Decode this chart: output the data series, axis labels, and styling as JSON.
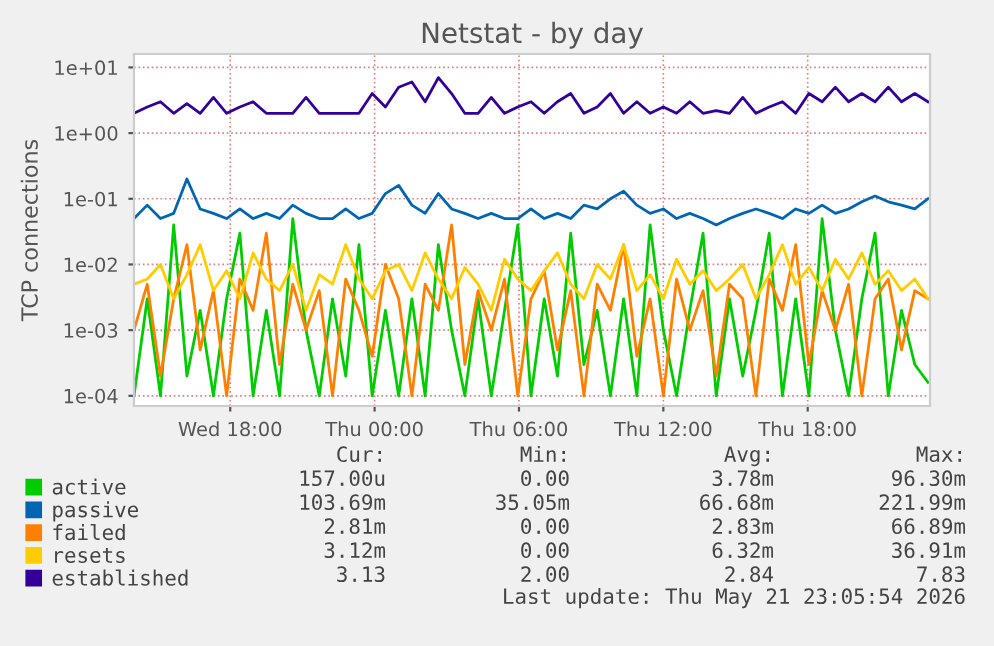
{
  "chart_data": {
    "type": "line",
    "title": "Netstat - by day",
    "ylabel": "TCP connections",
    "log": "y",
    "grid": true,
    "legend": "bottom",
    "marker": "none",
    "line_style": "solid",
    "x": [
      "2026-05-20T14:00",
      "2026-05-20T14:33",
      "2026-05-20T15:06",
      "2026-05-20T15:39",
      "2026-05-20T16:12",
      "2026-05-20T16:45",
      "2026-05-20T17:18",
      "2026-05-20T17:51",
      "2026-05-20T18:24",
      "2026-05-20T18:57",
      "2026-05-20T19:30",
      "2026-05-20T20:03",
      "2026-05-20T20:36",
      "2026-05-20T21:09",
      "2026-05-20T21:42",
      "2026-05-20T22:15",
      "2026-05-20T22:48",
      "2026-05-20T23:21",
      "2026-05-20T23:54",
      "2026-05-21T00:27",
      "2026-05-21T01:00",
      "2026-05-21T01:33",
      "2026-05-21T02:06",
      "2026-05-21T02:39",
      "2026-05-21T03:12",
      "2026-05-21T03:45",
      "2026-05-21T04:18",
      "2026-05-21T04:51",
      "2026-05-21T05:24",
      "2026-05-21T05:57",
      "2026-05-21T06:30",
      "2026-05-21T07:03",
      "2026-05-21T07:36",
      "2026-05-21T08:09",
      "2026-05-21T08:42",
      "2026-05-21T09:15",
      "2026-05-21T09:48",
      "2026-05-21T10:21",
      "2026-05-21T10:54",
      "2026-05-21T11:27",
      "2026-05-21T12:00",
      "2026-05-21T12:33",
      "2026-05-21T13:06",
      "2026-05-21T13:39",
      "2026-05-21T14:12",
      "2026-05-21T14:45",
      "2026-05-21T15:18",
      "2026-05-21T15:51",
      "2026-05-21T16:24",
      "2026-05-21T16:57",
      "2026-05-21T17:30",
      "2026-05-21T18:03",
      "2026-05-21T18:36",
      "2026-05-21T19:09",
      "2026-05-21T19:42",
      "2026-05-21T20:15",
      "2026-05-21T20:48",
      "2026-05-21T21:21",
      "2026-05-21T21:54",
      "2026-05-21T22:27",
      "2026-05-21T23:00"
    ],
    "xlim": [
      "2026-05-20T14:00",
      "2026-05-21T23:05"
    ],
    "xticks": [
      {
        "value": "2026-05-20T18:00",
        "label": "Wed 18:00"
      },
      {
        "value": "2026-05-21T00:00",
        "label": "Thu 00:00"
      },
      {
        "value": "2026-05-21T06:00",
        "label": "Thu 06:00"
      },
      {
        "value": "2026-05-21T12:00",
        "label": "Thu 12:00"
      },
      {
        "value": "2026-05-21T18:00",
        "label": "Thu 18:00"
      }
    ],
    "ylim": [
      7e-05,
      16
    ],
    "yticks": [
      {
        "value": 0.0001,
        "label": "1e-04"
      },
      {
        "value": 0.001,
        "label": "1e-03"
      },
      {
        "value": 0.01,
        "label": "1e-02"
      },
      {
        "value": 0.1,
        "label": "1e-01"
      },
      {
        "value": 1,
        "label": "1e+00"
      },
      {
        "value": 10,
        "label": "1e+01"
      }
    ],
    "series": [
      {
        "name": "active",
        "color": "#00cc00",
        "values": [
          0.0001,
          0.003,
          0.0001,
          0.04,
          0.0002,
          0.002,
          0.0001,
          0.003,
          0.03,
          0.0001,
          0.002,
          0.0001,
          0.05,
          0.001,
          0.0001,
          0.003,
          0.0002,
          0.02,
          0.0001,
          0.002,
          0.0001,
          0.003,
          0.0001,
          0.02,
          0.001,
          0.0001,
          0.003,
          0.0001,
          0.002,
          0.04,
          0.0001,
          0.003,
          0.0002,
          0.03,
          0.0003,
          0.002,
          0.0001,
          0.003,
          0.0001,
          0.04,
          0.001,
          0.0001,
          0.002,
          0.03,
          0.0001,
          0.003,
          0.0002,
          0.002,
          0.03,
          0.0001,
          0.003,
          0.0001,
          0.05,
          0.001,
          0.0001,
          0.003,
          0.03,
          0.0001,
          0.002,
          0.0003,
          0.00016
        ]
      },
      {
        "name": "passive",
        "color": "#0066b3",
        "values": [
          0.05,
          0.08,
          0.05,
          0.06,
          0.2,
          0.07,
          0.06,
          0.05,
          0.07,
          0.05,
          0.06,
          0.05,
          0.08,
          0.06,
          0.05,
          0.05,
          0.07,
          0.05,
          0.06,
          0.12,
          0.16,
          0.08,
          0.06,
          0.12,
          0.07,
          0.06,
          0.05,
          0.06,
          0.05,
          0.05,
          0.07,
          0.05,
          0.06,
          0.05,
          0.08,
          0.07,
          0.1,
          0.13,
          0.08,
          0.06,
          0.07,
          0.05,
          0.06,
          0.05,
          0.04,
          0.05,
          0.06,
          0.07,
          0.06,
          0.05,
          0.07,
          0.06,
          0.08,
          0.06,
          0.07,
          0.09,
          0.11,
          0.09,
          0.08,
          0.07,
          0.1
        ]
      },
      {
        "name": "failed",
        "color": "#ff8000",
        "values": [
          0.001,
          0.005,
          0.0002,
          0.003,
          0.02,
          0.0005,
          0.004,
          0.0001,
          0.006,
          0.002,
          0.03,
          0.0003,
          0.005,
          0.001,
          0.004,
          0.0001,
          0.006,
          0.002,
          0.0004,
          0.01,
          0.003,
          0.0001,
          0.005,
          0.002,
          0.04,
          0.0003,
          0.004,
          0.001,
          0.006,
          0.0001,
          0.003,
          0.008,
          0.0005,
          0.004,
          0.0001,
          0.005,
          0.002,
          0.02,
          0.0004,
          0.003,
          0.0001,
          0.006,
          0.001,
          0.004,
          0.0002,
          0.005,
          0.003,
          0.0001,
          0.006,
          0.002,
          0.02,
          0.0003,
          0.004,
          0.001,
          0.005,
          0.0001,
          0.003,
          0.006,
          0.0005,
          0.004,
          0.003
        ]
      },
      {
        "name": "resets",
        "color": "#ffcc00",
        "values": [
          0.005,
          0.006,
          0.01,
          0.003,
          0.007,
          0.02,
          0.004,
          0.008,
          0.003,
          0.015,
          0.006,
          0.004,
          0.01,
          0.002,
          0.007,
          0.005,
          0.02,
          0.006,
          0.003,
          0.008,
          0.01,
          0.004,
          0.015,
          0.006,
          0.003,
          0.009,
          0.005,
          0.002,
          0.012,
          0.006,
          0.004,
          0.008,
          0.015,
          0.005,
          0.003,
          0.01,
          0.006,
          0.02,
          0.004,
          0.007,
          0.003,
          0.012,
          0.005,
          0.008,
          0.004,
          0.006,
          0.01,
          0.003,
          0.007,
          0.02,
          0.005,
          0.009,
          0.004,
          0.012,
          0.006,
          0.015,
          0.005,
          0.008,
          0.004,
          0.006,
          0.003
        ]
      },
      {
        "name": "established",
        "color": "#330099",
        "values": [
          2,
          2.5,
          3,
          2,
          2.8,
          2,
          3.5,
          2,
          2.5,
          3,
          2,
          2,
          2,
          3.5,
          2,
          2,
          2,
          2,
          4,
          2.5,
          5,
          6,
          3,
          7,
          4,
          2,
          2,
          3.5,
          2,
          2.5,
          3,
          2,
          3,
          4,
          2,
          2.5,
          4,
          2,
          3,
          2,
          2.5,
          2,
          3,
          2,
          2.2,
          2,
          3.5,
          2,
          2.5,
          3,
          2,
          4,
          3,
          5,
          3,
          4,
          3,
          5,
          3,
          4,
          3
        ]
      }
    ],
    "annotations": [
      "Cur:",
      "Min:",
      "Avg:",
      "Max:",
      "157.00u",
      "0.00",
      "3.78m",
      "96.30m",
      "103.69m",
      "35.05m",
      "66.68m",
      "221.99m",
      "2.81m",
      "0.00",
      "2.83m",
      "66.89m",
      "3.12m",
      "0.00",
      "6.32m",
      "36.91m",
      "3.13",
      "2.00",
      "2.84",
      "7.83",
      "Last update: Thu May 21 23:05:54 2026"
    ]
  }
}
